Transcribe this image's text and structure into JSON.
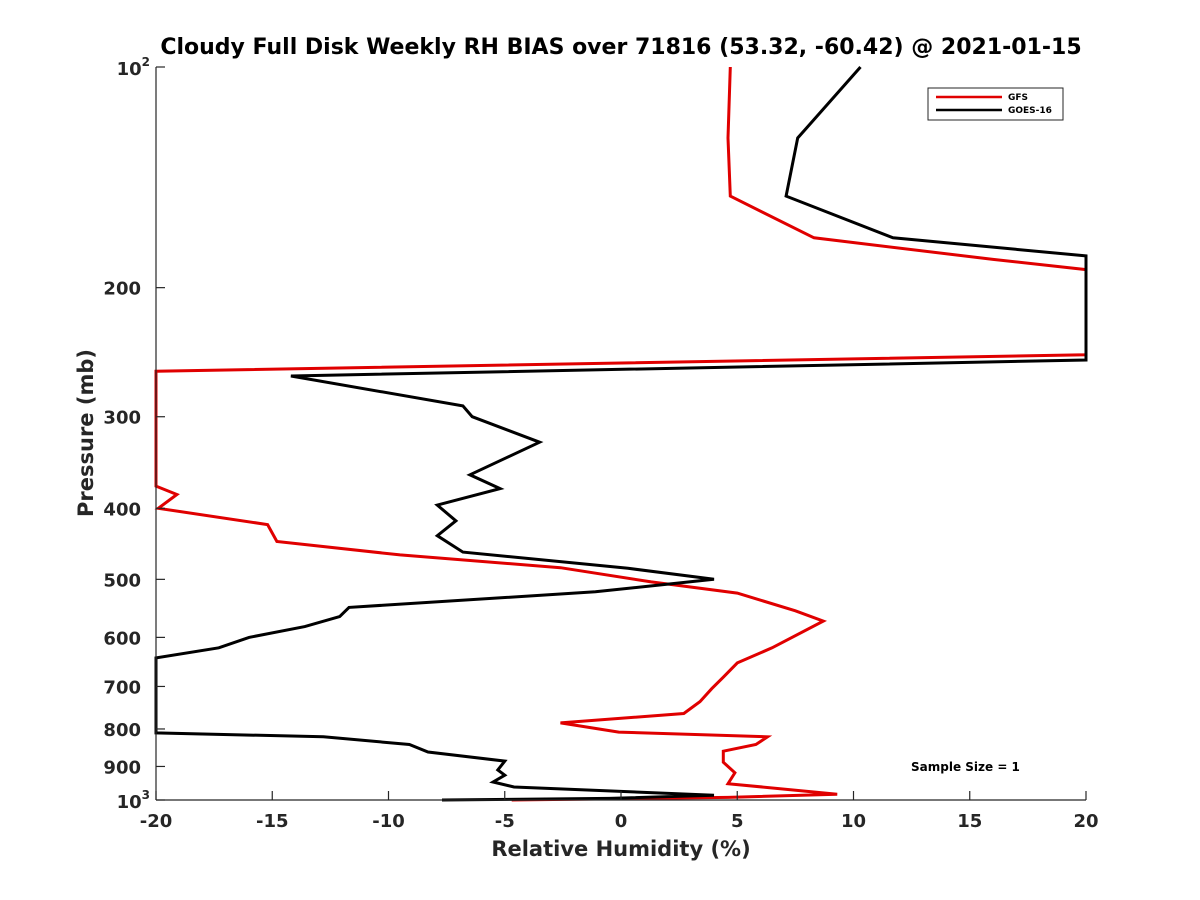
{
  "chart_data": {
    "type": "line",
    "title": "Cloudy Full Disk Weekly RH BIAS over 71816 (53.32, -60.42) @ 2021-01-15",
    "xlabel": "Relative Humidity (%)",
    "ylabel": "Pressure (mb)",
    "xlim": [
      -20,
      20
    ],
    "ylim": [
      100,
      1000
    ],
    "y_scale": "log",
    "y_reversed": true,
    "grid": false,
    "legend_position": "top-right",
    "x_ticks": [
      "-20",
      "-15",
      "-10",
      "-5",
      "0",
      "5",
      "10",
      "15",
      "20"
    ],
    "y_ticks": [
      {
        "base": "10",
        "exp": "2"
      },
      {
        "base": "200",
        "exp": ""
      },
      {
        "base": "300",
        "exp": ""
      },
      {
        "base": "400",
        "exp": ""
      },
      {
        "base": "500",
        "exp": ""
      },
      {
        "base": "600",
        "exp": ""
      },
      {
        "base": "700",
        "exp": ""
      },
      {
        "base": "800",
        "exp": ""
      },
      {
        "base": "900",
        "exp": ""
      },
      {
        "base": "10",
        "exp": "3"
      }
    ],
    "annotation": "Sample Size = 1",
    "series": [
      {
        "name": "GFS",
        "color": "#e00000",
        "points": [
          [
            4.7,
            100
          ],
          [
            4.6,
            125
          ],
          [
            4.7,
            150
          ],
          [
            8.3,
            171
          ],
          [
            16.0,
            183
          ],
          [
            20.0,
            189
          ],
          [
            20.0,
            247
          ],
          [
            -20.0,
            260
          ],
          [
            -20.0,
            373
          ],
          [
            -19.1,
            383
          ],
          [
            -19.9,
            400
          ],
          [
            -15.2,
            421
          ],
          [
            -14.8,
            444
          ],
          [
            -9.5,
            463
          ],
          [
            -2.6,
            482
          ],
          [
            1.3,
            504
          ],
          [
            5.0,
            522
          ],
          [
            7.5,
            552
          ],
          [
            8.7,
            570
          ],
          [
            6.5,
            620
          ],
          [
            5.0,
            650
          ],
          [
            4.4,
            680
          ],
          [
            3.9,
            705
          ],
          [
            3.4,
            734
          ],
          [
            2.7,
            762
          ],
          [
            -2.6,
            785
          ],
          [
            -0.1,
            808
          ],
          [
            6.3,
            820
          ],
          [
            5.8,
            840
          ],
          [
            4.4,
            858
          ],
          [
            4.4,
            888
          ],
          [
            4.9,
            918
          ],
          [
            4.6,
            950
          ],
          [
            9.3,
            982
          ],
          [
            4.6,
            992
          ],
          [
            -4.7,
            1000
          ]
        ]
      },
      {
        "name": "GOES-16",
        "color": "#000000",
        "points": [
          [
            10.3,
            100
          ],
          [
            7.6,
            125
          ],
          [
            7.1,
            150
          ],
          [
            11.7,
            171
          ],
          [
            20.0,
            181
          ],
          [
            20.0,
            251
          ],
          [
            -14.2,
            264
          ],
          [
            -6.8,
            290
          ],
          [
            -6.4,
            300
          ],
          [
            -3.5,
            325
          ],
          [
            -6.5,
            360
          ],
          [
            -5.2,
            376
          ],
          [
            -7.9,
            396
          ],
          [
            -7.1,
            416
          ],
          [
            -7.9,
            436
          ],
          [
            -6.8,
            459
          ],
          [
            0.3,
            483
          ],
          [
            4.0,
            500
          ],
          [
            -1.1,
            520
          ],
          [
            -11.7,
            546
          ],
          [
            -12.1,
            562
          ],
          [
            -13.6,
            580
          ],
          [
            -16.0,
            600
          ],
          [
            -17.3,
            620
          ],
          [
            -20.0,
            640
          ],
          [
            -20.0,
            810
          ],
          [
            -12.8,
            820
          ],
          [
            -9.1,
            840
          ],
          [
            -8.3,
            860
          ],
          [
            -5.0,
            885
          ],
          [
            -5.3,
            910
          ],
          [
            -5.0,
            925
          ],
          [
            -5.5,
            945
          ],
          [
            -4.6,
            960
          ],
          [
            4.0,
            985
          ],
          [
            -0.5,
            995
          ],
          [
            -7.7,
            1000
          ]
        ]
      }
    ]
  }
}
